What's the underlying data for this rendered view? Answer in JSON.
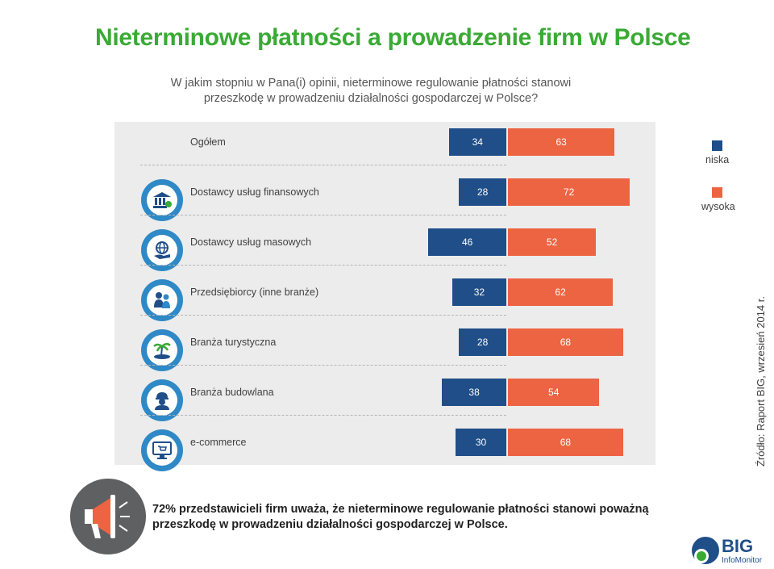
{
  "title": "Nieterminowe płatności a prowadzenie firm w Polsce",
  "question": "W jakim stopniu w Pana(i) opinii, nieterminowe regulowanie płatności stanowi przeszkodę w prowadzeniu działalności gospodarczej w Polsce?",
  "legend": {
    "low_label": "niska",
    "high_label": "wysoka",
    "low_color": "#1f4e88",
    "high_color": "#ed6443"
  },
  "source": "Źródło: Raport BIG, wrzesień 2014 r.",
  "callout": "72% przedstawicieli firm uważa, że nieterminowe regulowanie płatności stanowi poważną przeszkodę w prowadzeniu działalności gospodarczej w Polsce.",
  "logo": {
    "name": "BIG",
    "sub": "InfoMonitor"
  },
  "chart_data": {
    "type": "bar",
    "orientation": "horizontal-diverging",
    "categories": [
      "Ogółem",
      "Dostawcy usług finansowych",
      "Dostawcy usług masowych",
      "Przedsiębiorcy (inne branże)",
      "Branża turystyczna",
      "Branża budowlana",
      "e-commerce"
    ],
    "category_icons": [
      "",
      "bank-icon",
      "globe-hand-icon",
      "people-icon",
      "palm-island-icon",
      "builder-icon",
      "computer-cart-icon"
    ],
    "series": [
      {
        "name": "niska",
        "values": [
          34,
          28,
          46,
          32,
          28,
          38,
          30
        ]
      },
      {
        "name": "wysoka",
        "values": [
          63,
          72,
          52,
          62,
          68,
          54,
          68
        ]
      }
    ],
    "legend_position": "right"
  }
}
